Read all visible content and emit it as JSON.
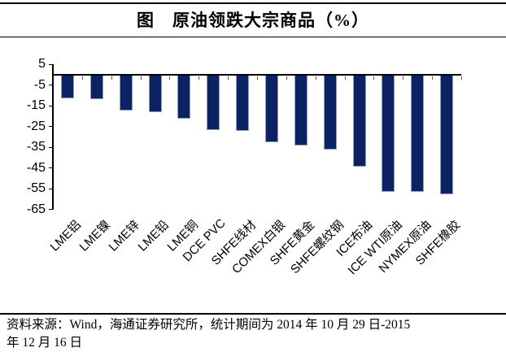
{
  "page": {
    "title": "图　原油领跌大宗商品（%）"
  },
  "source": {
    "line1": "资料来源：Wind，海通证券研究所，统计期间为 2014 年 10 月 29 日-2015",
    "line2": "年 12 月 16 日"
  },
  "chart_data": {
    "type": "bar",
    "title": "图 原油领跌大宗商品（%）",
    "categories": [
      "LME铝",
      "LME镍",
      "LME锌",
      "LME铅",
      "LME铜",
      "DCE PVC",
      "SHFE线材",
      "COMEX白银",
      "SHFE黄金",
      "SHFE螺纹钢",
      "ICE布油",
      "ICE WTI原油",
      "NYMEX原油",
      "SHFE橡胶"
    ],
    "values": [
      -11.5,
      -11.8,
      -17.4,
      -17.9,
      -21.3,
      -26.6,
      -27.2,
      -32.7,
      -34.0,
      -36.2,
      -44.3,
      -56.3,
      -56.4,
      -57.5
    ],
    "xlabel": "",
    "ylabel": "",
    "ylim": [
      -65,
      5
    ],
    "yticks": [
      5,
      -5,
      -15,
      -25,
      -35,
      -45,
      -55,
      -65
    ],
    "grid": false,
    "legend": "none",
    "colors": {
      "bar": "#0b2263",
      "bar_edge": "#8da0cc",
      "axis": "#000000"
    }
  }
}
